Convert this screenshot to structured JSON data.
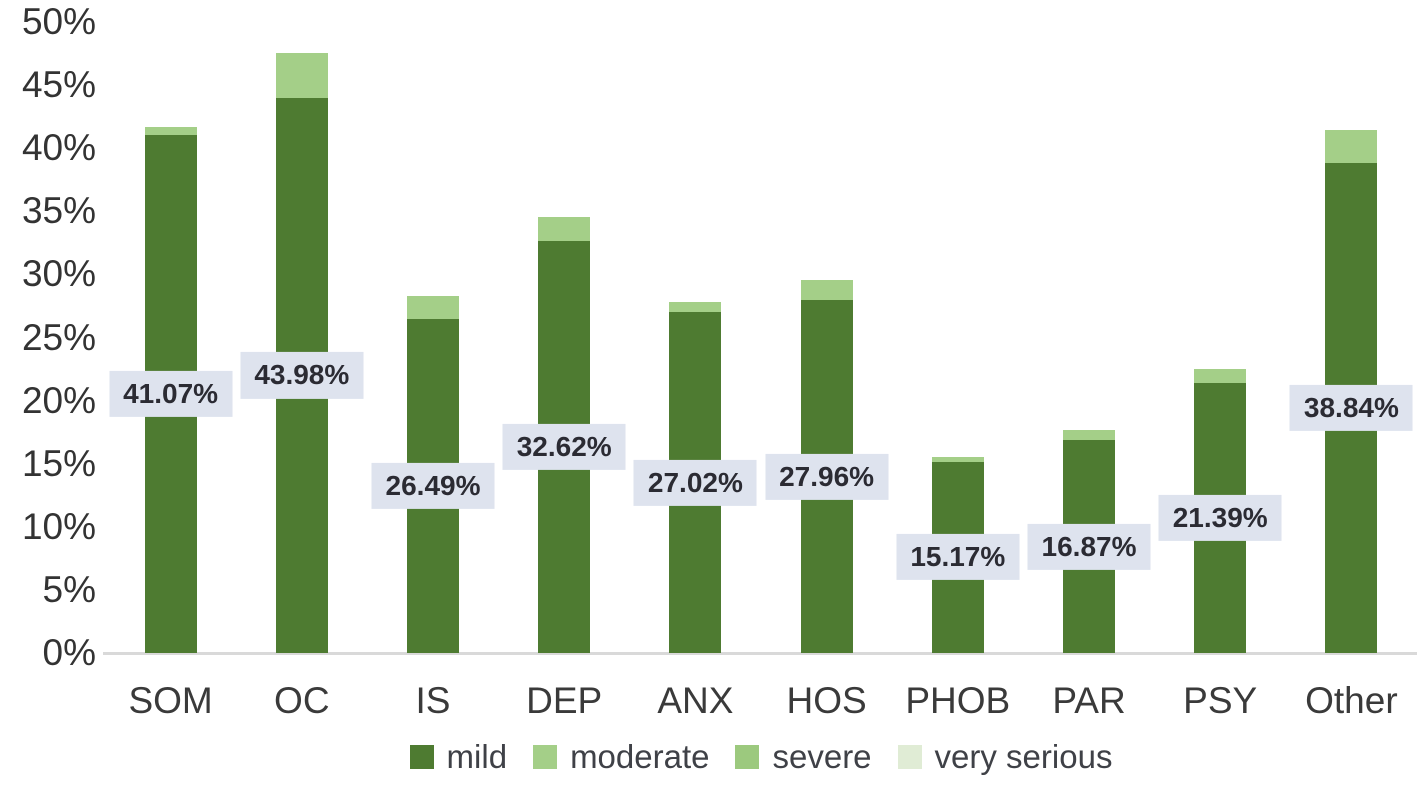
{
  "chart_data": {
    "type": "bar",
    "stacked": true,
    "title": "",
    "xlabel": "",
    "ylabel": "",
    "ylim": [
      0,
      50
    ],
    "grid": false,
    "legend_position": "bottom",
    "yticks": [
      "0%",
      "5%",
      "10%",
      "15%",
      "20%",
      "25%",
      "30%",
      "35%",
      "40%",
      "45%",
      "50%"
    ],
    "categories": [
      "SOM",
      "OC",
      "IS",
      "DEP",
      "ANX",
      "HOS",
      "PHOB",
      "PAR",
      "PSY",
      "Other"
    ],
    "series": [
      {
        "name": "mild",
        "color": "#4e7b31",
        "values": [
          41.07,
          43.98,
          26.49,
          32.62,
          27.02,
          27.96,
          15.17,
          16.87,
          21.39,
          38.84
        ]
      },
      {
        "name": "moderate",
        "color": "#a4cf88",
        "values": [
          0.6,
          3.6,
          1.8,
          1.9,
          0.8,
          1.6,
          0.4,
          0.8,
          1.1,
          2.6
        ]
      },
      {
        "name": "severe",
        "color": "#9cc97e",
        "values": [
          0,
          0,
          0,
          0,
          0,
          0,
          0,
          0,
          0,
          0
        ]
      },
      {
        "name": "very serious",
        "color": "#e0ecd5",
        "values": [
          0,
          0,
          0,
          0,
          0,
          0,
          0,
          0,
          0,
          0
        ]
      }
    ],
    "stack_totals_est": [
      41.7,
      47.6,
      28.3,
      34.5,
      27.8,
      29.6,
      15.6,
      17.7,
      22.5,
      41.4
    ],
    "data_labels": [
      "41.07%",
      "43.98%",
      "26.49%",
      "32.62%",
      "27.02%",
      "27.96%",
      "15.17%",
      "16.87%",
      "21.39%",
      "38.84%"
    ],
    "legend": [
      "mild",
      "moderate",
      "severe",
      "very serious"
    ],
    "colors": {
      "axis_line": "#d9d9d9",
      "data_label_bg": "#dee3ee",
      "data_label_text": "#2b2b33",
      "tick_text": "#333333",
      "legend_text": "#3f4147"
    }
  }
}
